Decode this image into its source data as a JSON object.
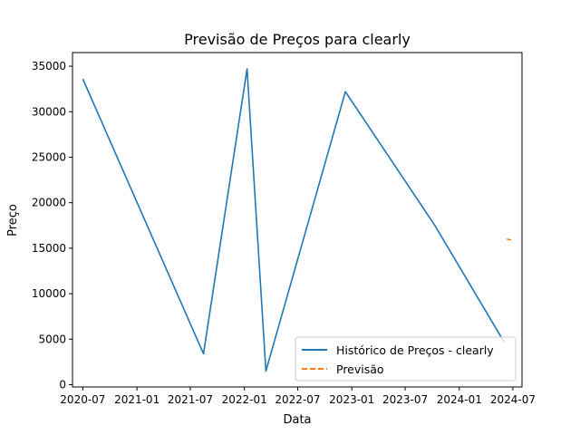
{
  "chart_data": {
    "type": "line",
    "title": "Previsão de Preços para clearly",
    "xlabel": "Data",
    "ylabel": "Preço",
    "x_range": [
      "2020-05-27",
      "2024-08-01"
    ],
    "ylim": [
      -250,
      36500
    ],
    "x_ticks": [
      "2020-07",
      "2021-01",
      "2021-07",
      "2022-01",
      "2022-07",
      "2023-01",
      "2023-07",
      "2024-01",
      "2024-07"
    ],
    "y_ticks": [
      0,
      5000,
      10000,
      15000,
      20000,
      25000,
      30000,
      35000
    ],
    "grid": false,
    "legend_position": "lower right",
    "series": [
      {
        "name": "Histórico de Preços - clearly",
        "color": "#1f77b4",
        "style": "solid",
        "x": [
          "2020-07-01",
          "2021-08-15",
          "2022-01-10",
          "2022-03-15",
          "2022-12-10",
          "2023-10-10",
          "2024-06-01"
        ],
        "values": [
          33600,
          3400,
          34700,
          1500,
          32200,
          17500,
          4700
        ]
      },
      {
        "name": "Previsão",
        "color": "#ff7f0e",
        "style": "dashed",
        "x": [
          "2024-06-10",
          "2024-06-25"
        ],
        "values": [
          16000,
          15900
        ]
      }
    ]
  }
}
